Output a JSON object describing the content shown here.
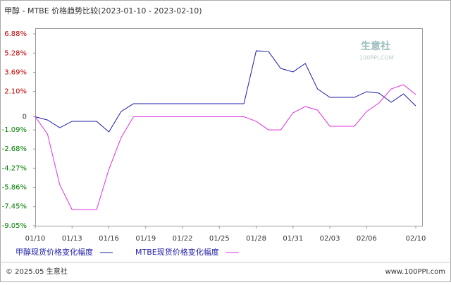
{
  "chart_data": {
    "type": "line",
    "title": "甲醇 - MTBE 价格趋势比较(2023-01-10 - 2023-02-10)",
    "watermark": "生意社",
    "watermark_sub": "100PPI.COM",
    "categories": [
      "01/10",
      null,
      null,
      "01/13",
      null,
      null,
      "01/16",
      null,
      null,
      "01/19",
      null,
      null,
      "01/22",
      null,
      null,
      "01/25",
      null,
      null,
      "01/28",
      null,
      null,
      "01/31",
      null,
      null,
      "02/03",
      null,
      null,
      "02/06",
      null,
      null,
      null,
      "02/10"
    ],
    "series": [
      {
        "name": "甲醇现货价格变化幅度",
        "color": "#1c1ca8",
        "values": [
          0,
          -0.27,
          -0.91,
          -0.38,
          -0.38,
          -0.38,
          -1.26,
          0.44,
          1.08,
          1.08,
          1.08,
          1.08,
          1.08,
          1.08,
          1.08,
          1.08,
          1.08,
          1.08,
          5.47,
          5.42,
          4.01,
          3.72,
          4.42,
          2.31,
          1.61,
          1.61,
          1.61,
          2.08,
          1.96,
          1.2,
          1.9,
          0.9
        ]
      },
      {
        "name": "MTBE现货价格变化幅度",
        "color": "#e030e0",
        "values": [
          0,
          -1.44,
          -5.66,
          -7.71,
          -7.71,
          -7.71,
          -4.37,
          -1.73,
          0,
          0,
          0,
          0,
          0,
          0,
          0,
          0,
          0,
          0,
          -0.38,
          -1.09,
          -1.09,
          0.32,
          0.85,
          0.55,
          -0.79,
          -0.79,
          -0.79,
          0.44,
          1.14,
          2.31,
          2.66,
          1.84
        ]
      }
    ],
    "ylim": [
      -9.05,
      6.88
    ],
    "yticks": [
      {
        "value": 6.88,
        "label": "6.88%"
      },
      {
        "value": 5.28,
        "label": "5.28%"
      },
      {
        "value": 3.69,
        "label": "3.69%"
      },
      {
        "value": 2.1,
        "label": "2.10%"
      },
      0,
      {
        "value": -1.09,
        "label": "-1.09%"
      },
      {
        "value": -2.68,
        "label": "-2.68%"
      },
      {
        "value": -4.27,
        "label": "-4.27%"
      },
      {
        "value": -5.86,
        "label": "-5.86%"
      },
      {
        "value": -7.45,
        "label": "-7.45%"
      },
      {
        "value": -9.05,
        "label": "-9.05%"
      }
    ],
    "grid": false
  },
  "footer": {
    "copyright": "© 2025.05 生意社",
    "site": "www.100PPI.com"
  }
}
